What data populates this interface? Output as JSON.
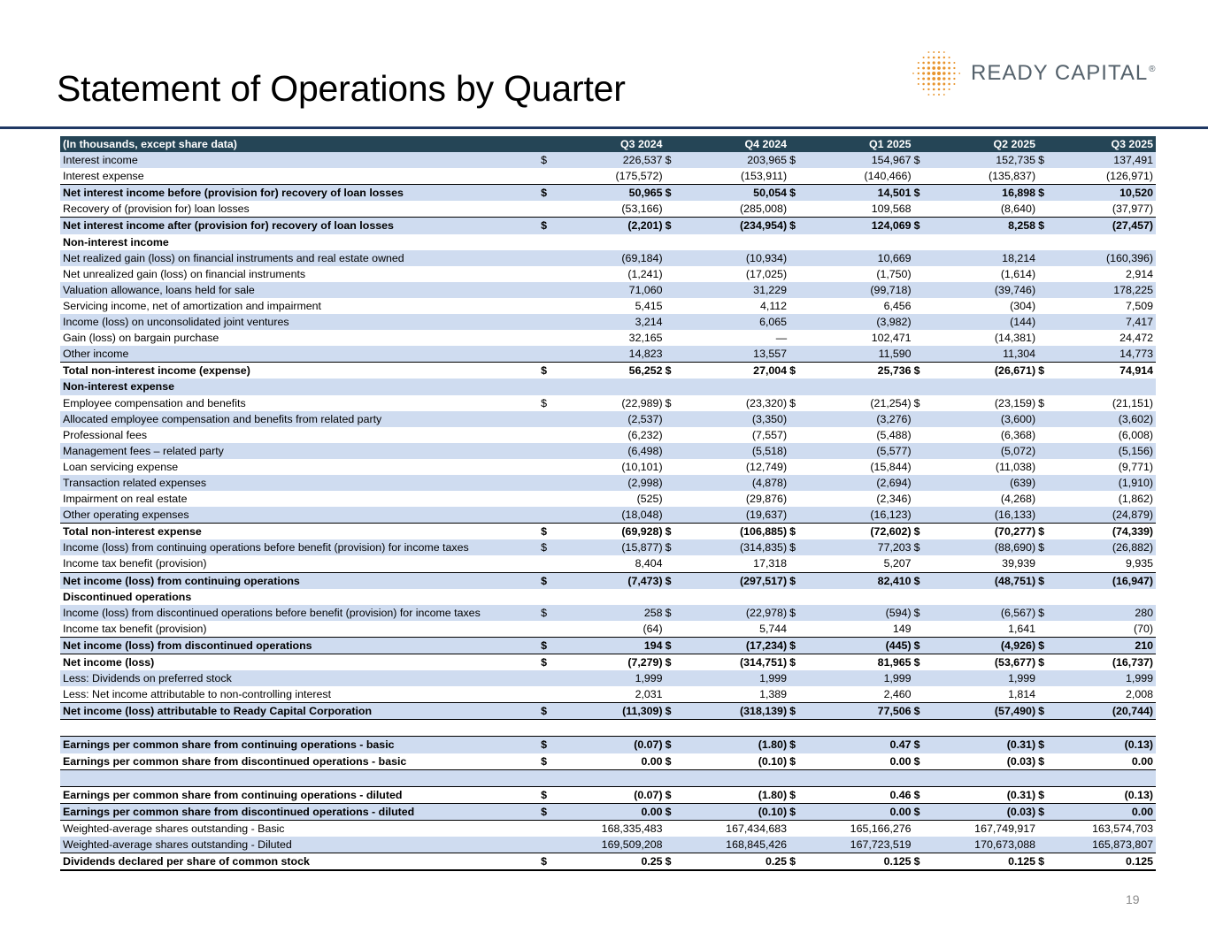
{
  "title": "Statement of Operations by Quarter",
  "logo": {
    "text": "READY CAPITAL",
    "mark": "®",
    "dot_color": "#e8942c",
    "text_color": "#54616b"
  },
  "page_number": "19",
  "colors": {
    "header_bg": "#254556",
    "stripe": "#cfdcf0",
    "rule": "#1f3864"
  },
  "table": {
    "header": {
      "label": "(In thousands, except share data)",
      "periods": [
        "Q3 2024",
        "Q4 2024",
        "Q1 2025",
        "Q2 2025",
        "Q3 2025"
      ]
    },
    "rows": [
      {
        "label": "Interest income",
        "dollar": true,
        "values": [
          "226,537",
          "203,965",
          "154,967",
          "152,735",
          "137,491"
        ],
        "shade": true
      },
      {
        "label": "Interest expense",
        "values": [
          "(175,572)",
          "(153,911)",
          "(140,466)",
          "(135,837)",
          "(126,971)"
        ]
      },
      {
        "label": "Net interest income before (provision for) recovery of loan losses",
        "dollar": true,
        "values": [
          "50,965",
          "50,054",
          "14,501",
          "16,898",
          "10,520"
        ],
        "bold": true,
        "top": true,
        "shade": true
      },
      {
        "label": "Recovery of (provision for) loan losses",
        "values": [
          "(53,166)",
          "(285,008)",
          "109,568",
          "(8,640)",
          "(37,977)"
        ]
      },
      {
        "label": "Net interest income after (provision for) recovery of loan losses",
        "dollar": true,
        "values": [
          "(2,201)",
          "(234,954)",
          "124,069",
          "8,258",
          "(27,457)"
        ],
        "bold": true,
        "top": true,
        "shade": true
      },
      {
        "label": "Non-interest income",
        "bold": true,
        "values": [
          "",
          "",
          "",
          "",
          ""
        ]
      },
      {
        "label": "Net realized gain (loss) on financial instruments and real estate owned",
        "values": [
          "(69,184)",
          "(10,934)",
          "10,669",
          "18,214",
          "(160,396)"
        ],
        "shade": true
      },
      {
        "label": "Net unrealized gain (loss) on financial instruments",
        "values": [
          "(1,241)",
          "(17,025)",
          "(1,750)",
          "(1,614)",
          "2,914"
        ]
      },
      {
        "label": "Valuation allowance, loans held for sale",
        "values": [
          "71,060",
          "31,229",
          "(99,718)",
          "(39,746)",
          "178,225"
        ],
        "shade": true
      },
      {
        "label": "Servicing income, net of amortization and impairment",
        "values": [
          "5,415",
          "4,112",
          "6,456",
          "(304)",
          "7,509"
        ]
      },
      {
        "label": "Income (loss) on unconsolidated joint ventures",
        "values": [
          "3,214",
          "6,065",
          "(3,982)",
          "(144)",
          "7,417"
        ],
        "shade": true
      },
      {
        "label": "Gain (loss) on bargain purchase",
        "values": [
          "32,165",
          "—",
          "102,471",
          "(14,381)",
          "24,472"
        ]
      },
      {
        "label": "Other income",
        "values": [
          "14,823",
          "13,557",
          "11,590",
          "11,304",
          "14,773"
        ],
        "shade": true
      },
      {
        "label": "Total non-interest income (expense)",
        "dollar": true,
        "values": [
          "56,252",
          "27,004",
          "25,736",
          "(26,671)",
          "74,914"
        ],
        "bold": true,
        "top": true
      },
      {
        "label": "Non-interest expense",
        "bold": true,
        "values": [
          "",
          "",
          "",
          "",
          ""
        ],
        "shade": true
      },
      {
        "label": "Employee compensation and benefits",
        "dollar": true,
        "values": [
          "(22,989)",
          "(23,320)",
          "(21,254)",
          "(23,159)",
          "(21,151)"
        ]
      },
      {
        "label": "Allocated employee compensation and benefits from related party",
        "values": [
          "(2,537)",
          "(3,350)",
          "(3,276)",
          "(3,600)",
          "(3,602)"
        ],
        "shade": true
      },
      {
        "label": "Professional fees",
        "values": [
          "(6,232)",
          "(7,557)",
          "(5,488)",
          "(6,368)",
          "(6,008)"
        ]
      },
      {
        "label": "Management fees – related party",
        "values": [
          "(6,498)",
          "(5,518)",
          "(5,577)",
          "(5,072)",
          "(5,156)"
        ],
        "shade": true
      },
      {
        "label": "Loan servicing expense",
        "values": [
          "(10,101)",
          "(12,749)",
          "(15,844)",
          "(11,038)",
          "(9,771)"
        ]
      },
      {
        "label": "Transaction related expenses",
        "values": [
          "(2,998)",
          "(4,878)",
          "(2,694)",
          "(639)",
          "(1,910)"
        ],
        "shade": true
      },
      {
        "label": "Impairment on real estate",
        "values": [
          "(525)",
          "(29,876)",
          "(2,346)",
          "(4,268)",
          "(1,862)"
        ]
      },
      {
        "label": "Other operating expenses",
        "values": [
          "(18,048)",
          "(19,637)",
          "(16,123)",
          "(16,133)",
          "(24,879)"
        ],
        "shade": true
      },
      {
        "label": "Total non-interest expense",
        "dollar": true,
        "values": [
          "(69,928)",
          "(106,885)",
          "(72,602)",
          "(70,277)",
          "(74,339)"
        ],
        "bold": true,
        "top": true
      },
      {
        "label": "Income (loss) from continuing operations before benefit (provision) for income taxes",
        "dollar": true,
        "values": [
          "(15,877)",
          "(314,835)",
          "77,203",
          "(88,690)",
          "(26,882)"
        ],
        "shade": true
      },
      {
        "label": "Income tax benefit (provision)",
        "values": [
          "8,404",
          "17,318",
          "5,207",
          "39,939",
          "9,935"
        ]
      },
      {
        "label": "Net income (loss) from continuing operations",
        "dollar": true,
        "values": [
          "(7,473)",
          "(297,517)",
          "82,410",
          "(48,751)",
          "(16,947)"
        ],
        "bold": true,
        "top": true,
        "shade": true
      },
      {
        "label": "Discontinued operations",
        "bold": true,
        "values": [
          "",
          "",
          "",
          "",
          ""
        ]
      },
      {
        "label": "Income (loss) from discontinued operations before benefit (provision) for income taxes",
        "dollar": true,
        "values": [
          "258",
          "(22,978)",
          "(594)",
          "(6,567)",
          "280"
        ],
        "shade": true
      },
      {
        "label": "Income tax benefit (provision)",
        "values": [
          "(64)",
          "5,744",
          "149",
          "1,641",
          "(70)"
        ]
      },
      {
        "label": "Net income (loss) from discontinued operations",
        "dollar": true,
        "values": [
          "194",
          "(17,234)",
          "(445)",
          "(4,926)",
          "210"
        ],
        "bold": true,
        "top": true,
        "shade": true
      },
      {
        "label": "Net income (loss)",
        "dollar": true,
        "values": [
          "(7,279)",
          "(314,751)",
          "81,965",
          "(53,677)",
          "(16,737)"
        ],
        "bold": true,
        "top": true
      },
      {
        "label": "Less: Dividends on preferred stock",
        "values": [
          "1,999",
          "1,999",
          "1,999",
          "1,999",
          "1,999"
        ],
        "shade": true
      },
      {
        "label": "Less: Net income attributable to non-controlling interest",
        "values": [
          "2,031",
          "1,389",
          "2,460",
          "1,814",
          "2,008"
        ]
      },
      {
        "label": "Net income (loss) attributable to Ready Capital Corporation",
        "dollar": true,
        "values": [
          "(11,309)",
          "(318,139)",
          "77,506",
          "(57,490)",
          "(20,744)"
        ],
        "bold": true,
        "top": true,
        "shade": true
      },
      {
        "label": "",
        "values": [
          "",
          "",
          "",
          "",
          ""
        ],
        "top": true
      },
      {
        "label": "Earnings per common share from continuing operations - basic",
        "dollar": true,
        "values": [
          "(0.07)",
          "(1.80)",
          "0.47",
          "(0.31)",
          "(0.13)"
        ],
        "bold": true,
        "top": true,
        "shade": true
      },
      {
        "label": "Earnings per common share from discontinued operations - basic",
        "dollar": true,
        "values": [
          "0.00",
          "(0.10)",
          "0.00",
          "(0.03)",
          "0.00"
        ],
        "bold": true
      },
      {
        "label": "",
        "values": [
          "",
          "",
          "",
          "",
          ""
        ],
        "top": true,
        "shade": true
      },
      {
        "label": "Earnings per common share from continuing operations - diluted",
        "dollar": true,
        "values": [
          "(0.07)",
          "(1.80)",
          "0.46",
          "(0.31)",
          "(0.13)"
        ],
        "bold": true,
        "top": true
      },
      {
        "label": "Earnings per common share from discontinued operations - diluted",
        "dollar": true,
        "values": [
          "0.00",
          "(0.10)",
          "0.00",
          "(0.03)",
          "0.00"
        ],
        "bold": true,
        "top": true,
        "shade": true
      },
      {
        "label": "Weighted-average shares outstanding -  Basic",
        "values": [
          "168,335,483",
          "167,434,683",
          "165,166,276",
          "167,749,917",
          "163,574,703"
        ],
        "top": true
      },
      {
        "label": "Weighted-average shares outstanding - Diluted",
        "values": [
          "169,509,208",
          "168,845,426",
          "167,723,519",
          "170,673,088",
          "165,873,807"
        ],
        "shade": true
      },
      {
        "label": "Dividends declared per share of common stock",
        "dollar": true,
        "values": [
          "0.25",
          "0.25",
          "0.125",
          "0.125",
          "0.125"
        ],
        "bold": true,
        "top": true,
        "last": true
      }
    ]
  }
}
